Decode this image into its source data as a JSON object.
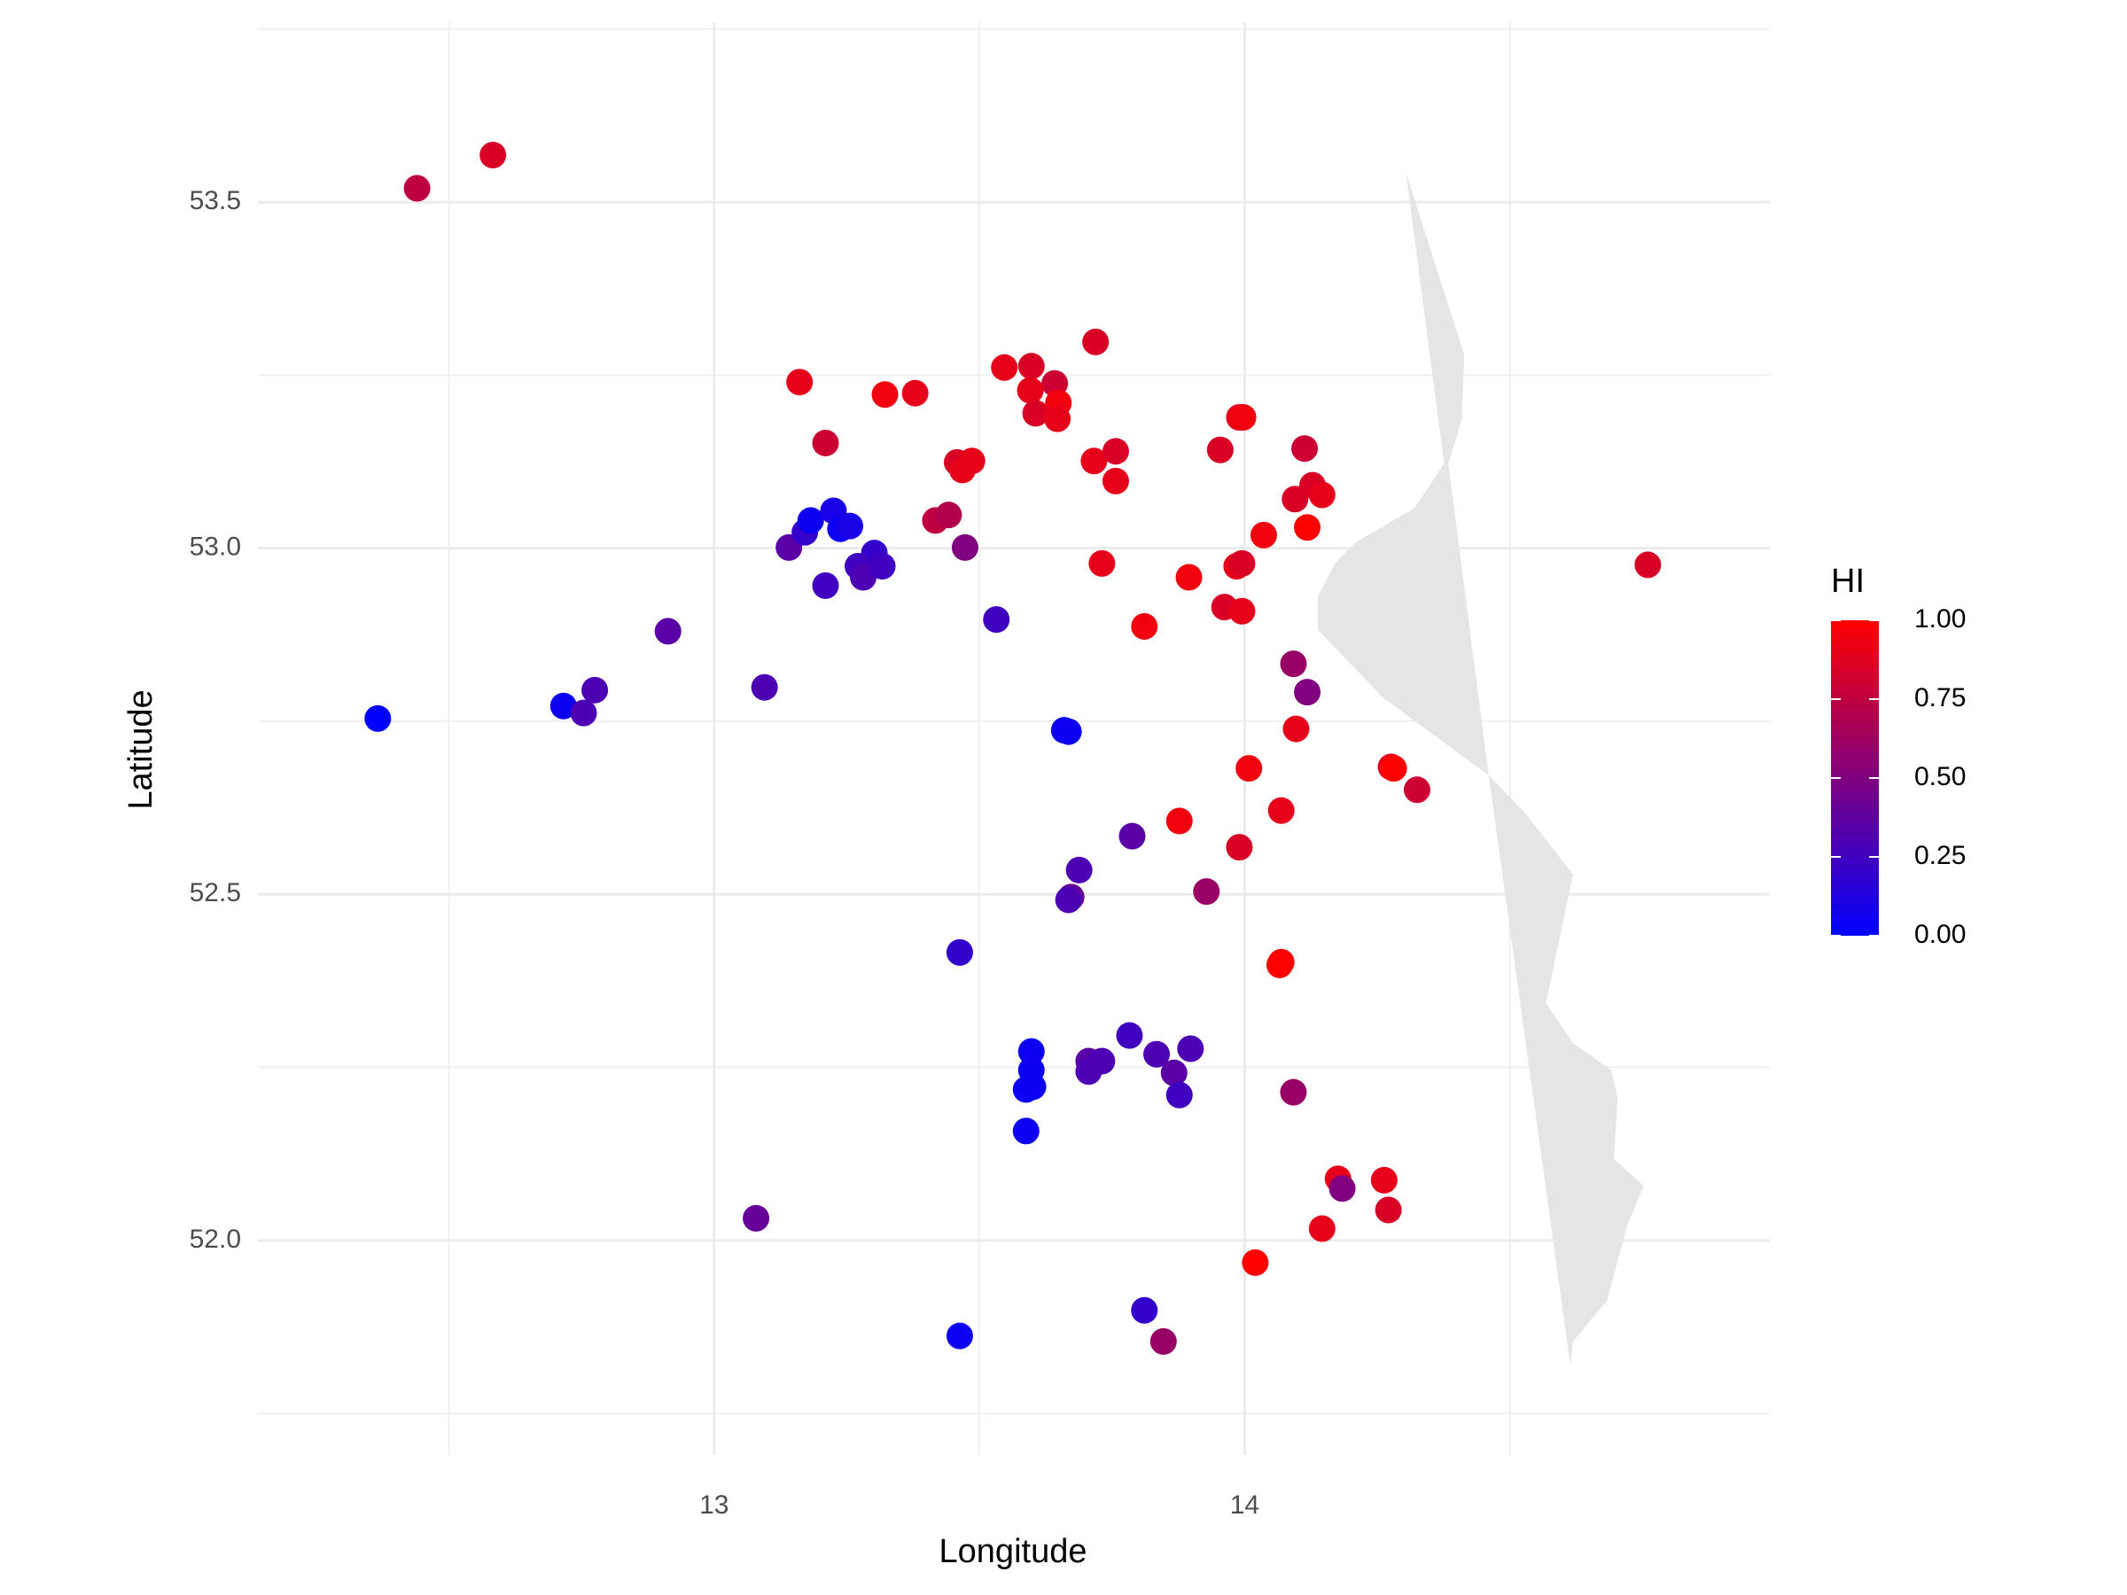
{
  "chart_data": {
    "type": "scatter",
    "x_label": "Longitude",
    "y_label": "Latitude",
    "xlim": [
      12.14,
      14.99
    ],
    "ylim": [
      51.69,
      53.76
    ],
    "xticks": [
      13,
      14
    ],
    "xminor": [
      12.5,
      13.5,
      14.5
    ],
    "yticks": [
      {
        "value": 52.0,
        "label": "52.0"
      },
      52.5,
      {
        "value": 53.0,
        "label": "53.0"
      },
      53.5
    ],
    "yminor": [
      51.75,
      52.25,
      52.75,
      53.25,
      53.75
    ],
    "grid": true,
    "shape": {
      "color": "#e5e5e5",
      "lon": [
        14.304,
        14.414,
        14.409,
        14.384,
        14.46,
        14.529,
        14.619,
        14.568,
        14.619,
        14.691,
        14.703,
        14.696,
        14.752,
        14.721,
        14.683,
        14.619,
        14.614,
        14.46,
        14.261,
        14.138,
        14.138,
        14.171,
        14.21,
        14.32,
        14.376
      ],
      "lat": [
        53.543,
        53.279,
        53.185,
        53.122,
        52.672,
        52.617,
        52.529,
        52.343,
        52.285,
        52.246,
        52.206,
        52.118,
        52.079,
        52.021,
        51.913,
        51.854,
        51.819,
        52.672,
        52.784,
        52.882,
        52.931,
        52.979,
        53.009,
        53.058,
        53.122
      ]
    },
    "x": [
      12.44,
      12.583,
      13.161,
      13.21,
      13.322,
      13.379,
      13.547,
      13.598,
      13.642,
      13.649,
      13.596,
      13.606,
      13.647,
      13.719,
      13.458,
      13.486,
      13.468,
      13.716,
      13.757,
      13.757,
      13.954,
      13.99,
      13.997,
      14.113,
      14.128,
      14.095,
      14.146,
      14.118,
      14.036,
      13.731,
      13.895,
      13.985,
      13.995,
      13.962,
      13.995,
      13.811,
      13.417,
      13.442,
      13.473,
      13.141,
      13.171,
      13.182,
      13.225,
      13.238,
      13.256,
      13.21,
      13.302,
      13.271,
      13.281,
      13.317,
      13.532,
      12.913,
      13.095,
      12.366,
      12.716,
      12.754,
      12.775,
      13.66,
      13.668,
      14.092,
      14.118,
      14.097,
      14.008,
      14.276,
      14.281,
      14.325,
      14.069,
      13.877,
      13.99,
      13.788,
      13.688,
      13.673,
      13.668,
      13.928,
      13.463,
      14.069,
      14.066,
      13.598,
      13.598,
      13.588,
      13.601,
      13.588,
      13.706,
      13.731,
      13.706,
      13.783,
      13.834,
      13.867,
      13.898,
      13.877,
      14.092,
      14.176,
      14.184,
      14.263,
      14.271,
      14.146,
      14.02,
      13.079,
      13.463,
      13.811,
      13.847,
      14.76
    ],
    "y": [
      53.52,
      53.568,
      53.24,
      53.152,
      53.222,
      53.224,
      53.261,
      53.263,
      53.238,
      53.21,
      53.228,
      53.195,
      53.187,
      53.298,
      53.124,
      53.126,
      53.113,
      53.126,
      53.14,
      53.097,
      53.142,
      53.189,
      53.189,
      53.144,
      53.091,
      53.071,
      53.077,
      53.03,
      53.019,
      52.978,
      52.958,
      52.974,
      52.978,
      52.915,
      52.909,
      52.887,
      53.04,
      53.048,
      53.001,
      53.001,
      53.023,
      53.04,
      53.054,
      53.028,
      53.032,
      52.946,
      52.993,
      52.974,
      52.958,
      52.974,
      52.897,
      52.88,
      52.799,
      52.754,
      52.772,
      52.762,
      52.795,
      52.737,
      52.735,
      52.833,
      52.792,
      52.739,
      52.682,
      52.684,
      52.682,
      52.651,
      52.621,
      52.606,
      52.568,
      52.584,
      52.535,
      52.496,
      52.492,
      52.504,
      52.416,
      52.402,
      52.398,
      52.273,
      52.246,
      52.218,
      52.222,
      52.158,
      52.259,
      52.259,
      52.244,
      52.296,
      52.269,
      52.242,
      52.277,
      52.21,
      52.214,
      52.089,
      52.075,
      52.087,
      52.044,
      52.017,
      51.968,
      52.032,
      51.862,
      51.899,
      51.854,
      52.976
    ],
    "values": [
      0.75,
      0.85,
      0.9,
      0.8,
      0.95,
      0.9,
      0.9,
      0.85,
      0.8,
      0.95,
      0.9,
      0.85,
      0.9,
      0.85,
      0.85,
      0.9,
      0.9,
      0.9,
      0.85,
      0.9,
      0.85,
      0.9,
      0.95,
      0.8,
      0.85,
      0.85,
      0.9,
      1.0,
      0.95,
      0.9,
      0.95,
      0.9,
      0.85,
      0.85,
      0.9,
      0.95,
      0.75,
      0.7,
      0.5,
      0.35,
      0.2,
      0.05,
      0.1,
      0.05,
      0.1,
      0.25,
      0.2,
      0.25,
      0.3,
      0.25,
      0.25,
      0.35,
      0.3,
      0.0,
      0.05,
      0.3,
      0.3,
      0.05,
      0.05,
      0.6,
      0.5,
      0.9,
      0.95,
      0.9,
      1.0,
      0.8,
      0.9,
      0.95,
      0.85,
      0.35,
      0.3,
      0.4,
      0.3,
      0.6,
      0.2,
      1.0,
      1.0,
      0.05,
      0.05,
      0.05,
      0.05,
      0.05,
      0.35,
      0.3,
      0.3,
      0.25,
      0.3,
      0.35,
      0.3,
      0.25,
      0.6,
      0.9,
      0.5,
      0.9,
      0.85,
      0.9,
      1.0,
      0.4,
      0.05,
      0.2,
      0.6,
      0.85
    ],
    "colorbar": {
      "title": "HI",
      "low_color": "#0000ff",
      "high_color": "#ff0000",
      "lim": [
        0,
        1
      ],
      "ticks": [
        {
          "value": 0,
          "label": "0.00"
        },
        {
          "value": 0.25,
          "label": "0.25"
        },
        {
          "value": 0.5,
          "label": "0.50"
        },
        {
          "value": 0.75,
          "label": "0.75"
        },
        {
          "value": 1,
          "label": "1.00"
        }
      ]
    }
  }
}
